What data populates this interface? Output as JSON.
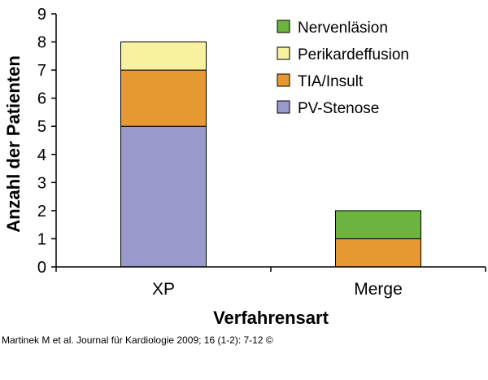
{
  "chart_data": {
    "type": "bar",
    "stacked": true,
    "categories": [
      "XP",
      "Merge"
    ],
    "series": [
      {
        "name": "PV-Stenose",
        "values": [
          5,
          0
        ],
        "color": "#9999CC"
      },
      {
        "name": "TIA/Insult",
        "values": [
          2,
          1
        ],
        "color": "#E69933"
      },
      {
        "name": "Perikardeffusion",
        "values": [
          1,
          0
        ],
        "color": "#F8F2A0"
      },
      {
        "name": "Nervenläsion",
        "values": [
          0,
          1
        ],
        "color": "#6DB33F"
      }
    ],
    "legend_order": [
      "Nervenläsion",
      "Perikardeffusion",
      "TIA/Insult",
      "PV-Stenose"
    ],
    "xlabel": "Verfahrensart",
    "ylabel": "Anzahl der Patienten",
    "ylim": [
      0,
      9
    ],
    "yticks": [
      0,
      1,
      2,
      3,
      4,
      5,
      6,
      7,
      8,
      9
    ],
    "grid": false,
    "legend_position": "top-right"
  },
  "citation": "Martinek M et al. Journal für Kardiologie 2009; 16 (1-2): 7-12 ©"
}
